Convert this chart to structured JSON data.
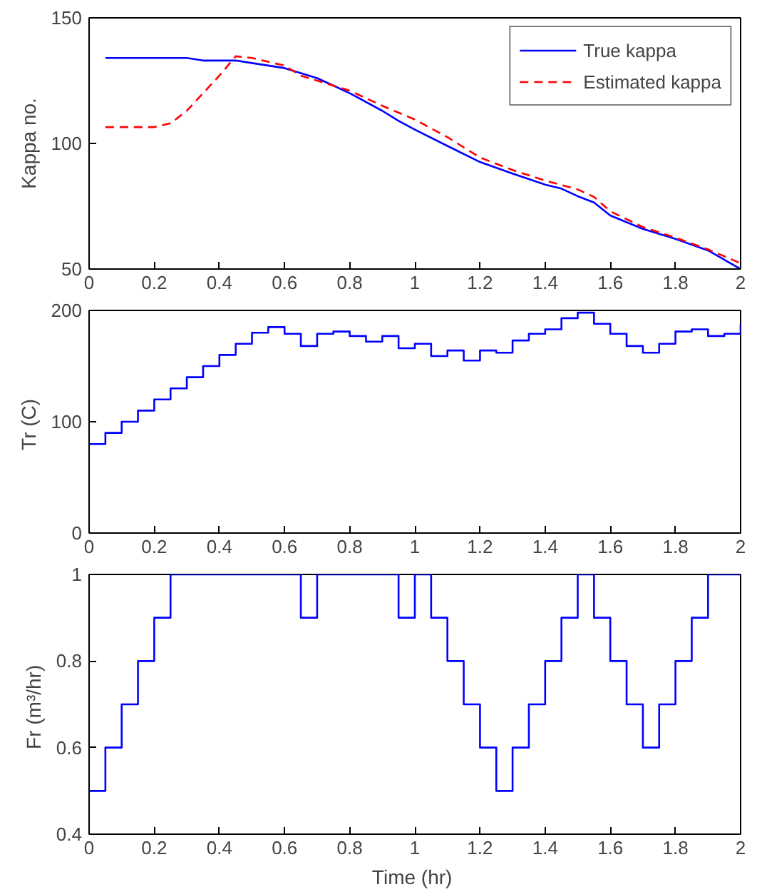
{
  "chart_data": [
    {
      "type": "line",
      "ylabel": "Kappa no.",
      "xlim": [
        0,
        2
      ],
      "ylim": [
        50,
        150
      ],
      "xticks": [
        0,
        0.2,
        0.4,
        0.6,
        0.8,
        1,
        1.2,
        1.4,
        1.6,
        1.8,
        2
      ],
      "yticks": [
        50,
        100,
        150
      ],
      "legend": "top right",
      "grid": false,
      "series": [
        {
          "name": "True kappa",
          "color": "#0000ff",
          "line_style": "solid",
          "x": [
            0.05,
            0.3,
            0.35,
            0.45,
            0.5,
            0.6,
            0.65,
            0.7,
            0.75,
            0.8,
            0.9,
            0.95,
            1.0,
            1.1,
            1.2,
            1.3,
            1.4,
            1.45,
            1.5,
            1.55,
            1.6,
            1.7,
            1.8,
            1.9,
            2.0
          ],
          "values": [
            134,
            134,
            133,
            133,
            132,
            130,
            128,
            126,
            123,
            120,
            113,
            109,
            105.5,
            99,
            92.6,
            88,
            83.6,
            82,
            79,
            76.5,
            71.3,
            66,
            62,
            57.4,
            50
          ]
        },
        {
          "name": "Estimated kappa",
          "color": "#ff0000",
          "line_style": "dashed",
          "x": [
            0.05,
            0.2,
            0.25,
            0.3,
            0.35,
            0.4,
            0.45,
            0.5,
            0.6,
            0.65,
            0.7,
            0.8,
            0.9,
            1.0,
            1.1,
            1.2,
            1.3,
            1.4,
            1.5,
            1.55,
            1.6,
            1.7,
            1.8,
            1.9,
            2.0
          ],
          "values": [
            106.5,
            106.5,
            108,
            113,
            120,
            127,
            134.7,
            134,
            131,
            127,
            125,
            121,
            115,
            109.5,
            102.5,
            94.4,
            89.4,
            85.2,
            81.7,
            78.7,
            73,
            66.7,
            62.5,
            57.8,
            52.3
          ]
        }
      ]
    },
    {
      "type": "step",
      "ylabel": "Tr  (C)",
      "xlim": [
        0,
        2
      ],
      "ylim": [
        0,
        200
      ],
      "xticks": [
        0,
        0.2,
        0.4,
        0.6,
        0.8,
        1,
        1.2,
        1.4,
        1.6,
        1.8,
        2
      ],
      "yticks": [
        0,
        100,
        200
      ],
      "grid": false,
      "series": [
        {
          "color": "#0000ff",
          "x": [
            0,
            0.05,
            0.1,
            0.15,
            0.2,
            0.25,
            0.3,
            0.35,
            0.4,
            0.45,
            0.5,
            0.55,
            0.6,
            0.65,
            0.7,
            0.75,
            0.8,
            0.85,
            0.9,
            0.95,
            1.0,
            1.05,
            1.1,
            1.15,
            1.2,
            1.25,
            1.3,
            1.35,
            1.4,
            1.45,
            1.5,
            1.55,
            1.6,
            1.65,
            1.7,
            1.75,
            1.8,
            1.85,
            1.9,
            1.95,
            2.0
          ],
          "values": [
            80,
            90,
            100,
            110,
            120,
            130,
            140,
            150,
            160,
            170,
            180,
            185,
            179,
            168,
            179,
            181,
            177,
            172,
            177,
            166,
            170,
            159,
            164,
            155,
            164,
            162,
            173,
            179,
            183,
            193,
            198,
            188,
            179,
            168,
            162,
            170,
            181,
            183,
            177,
            179,
            188
          ]
        }
      ]
    },
    {
      "type": "step",
      "ylabel": "Fr  (m³/hr)",
      "xlabel": "Time  (hr)",
      "xlim": [
        0,
        2
      ],
      "ylim": [
        0.4,
        1
      ],
      "xticks": [
        0,
        0.2,
        0.4,
        0.6,
        0.8,
        1,
        1.2,
        1.4,
        1.6,
        1.8,
        2
      ],
      "yticks": [
        0.4,
        0.6,
        0.8,
        1
      ],
      "grid": false,
      "series": [
        {
          "color": "#0000ff",
          "x": [
            0,
            0.05,
            0.1,
            0.15,
            0.2,
            0.25,
            0.3,
            0.35,
            0.4,
            0.45,
            0.5,
            0.55,
            0.6,
            0.65,
            0.7,
            0.75,
            0.8,
            0.85,
            0.9,
            0.95,
            1.0,
            1.05,
            1.1,
            1.15,
            1.2,
            1.25,
            1.3,
            1.35,
            1.4,
            1.45,
            1.5,
            1.55,
            1.6,
            1.65,
            1.7,
            1.75,
            1.8,
            1.85,
            1.9,
            1.95,
            2.0
          ],
          "values": [
            0.5,
            0.6,
            0.7,
            0.8,
            0.9,
            1,
            1,
            1,
            1,
            1,
            1,
            1,
            1,
            0.9,
            1,
            1,
            1,
            1,
            1,
            0.9,
            1,
            0.9,
            0.8,
            0.7,
            0.6,
            0.5,
            0.6,
            0.7,
            0.8,
            0.9,
            1,
            0.9,
            0.8,
            0.7,
            0.6,
            0.7,
            0.8,
            0.9,
            1,
            1,
            1
          ]
        }
      ]
    }
  ]
}
